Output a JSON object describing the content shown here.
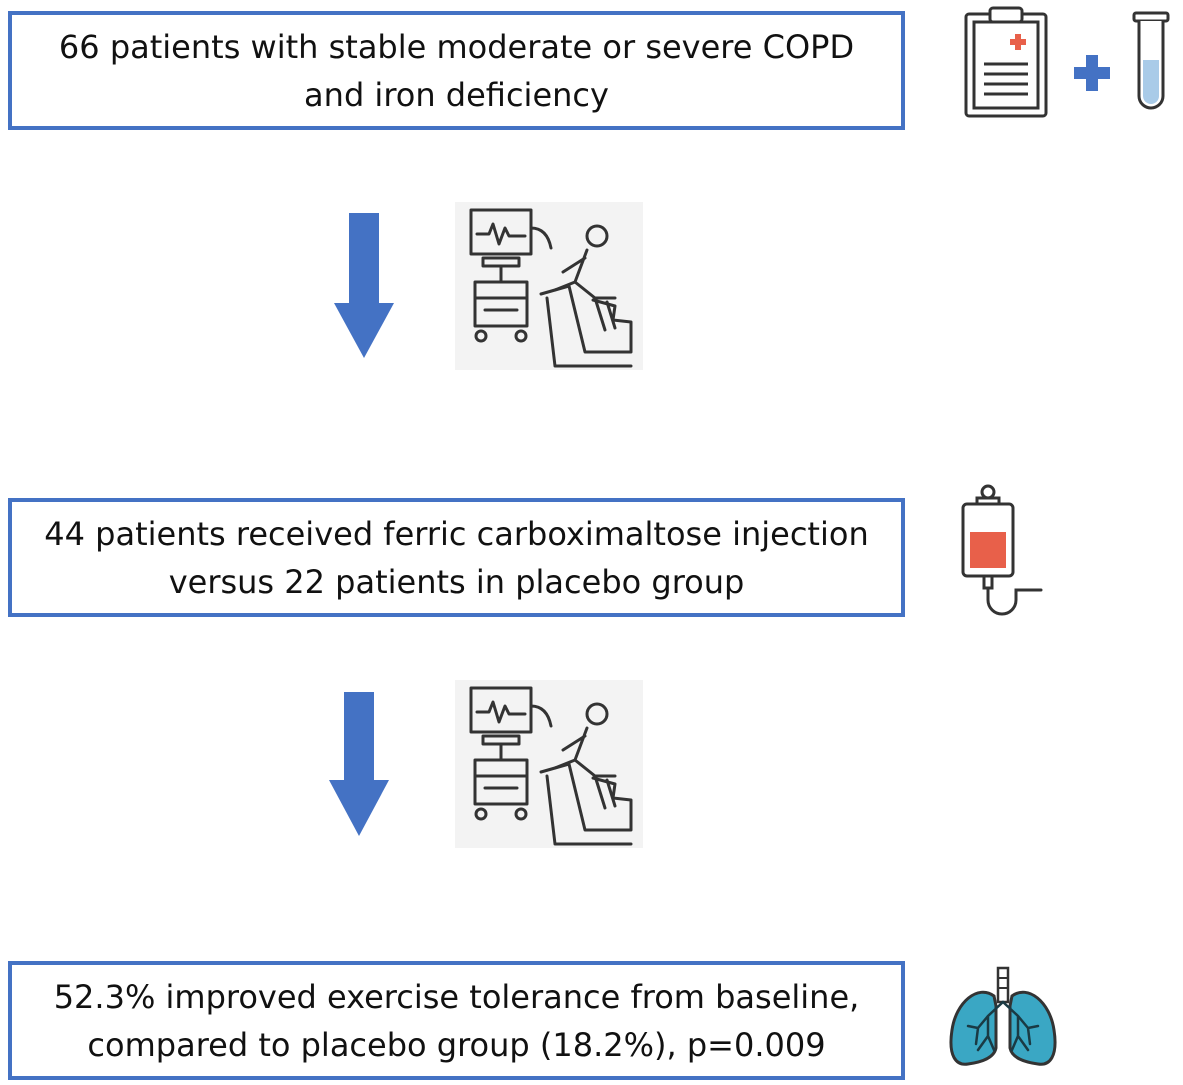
{
  "steps": [
    {
      "line1": "66 patients with stable moderate or severe COPD",
      "line2": "and iron deficiency"
    },
    {
      "line1": "44 patients received ferric carboximaltose injection",
      "line2": "versus 22 patients in placebo group"
    },
    {
      "line1": "52.3% improved exercise tolerance from baseline,",
      "line2": "compared to placebo group (18.2%), p=0.009"
    }
  ],
  "colors": {
    "box_border": "#4472c4",
    "arrow": "#4472c4",
    "iv_fluid": "#e8604a",
    "lungs": "#3aa7c4",
    "test_tube_fluid": "#a9cbe8"
  },
  "icons": [
    "clipboard-icon",
    "plus-icon",
    "test-tube-icon",
    "exercise-test-icon",
    "iv-bag-icon",
    "lungs-icon"
  ]
}
